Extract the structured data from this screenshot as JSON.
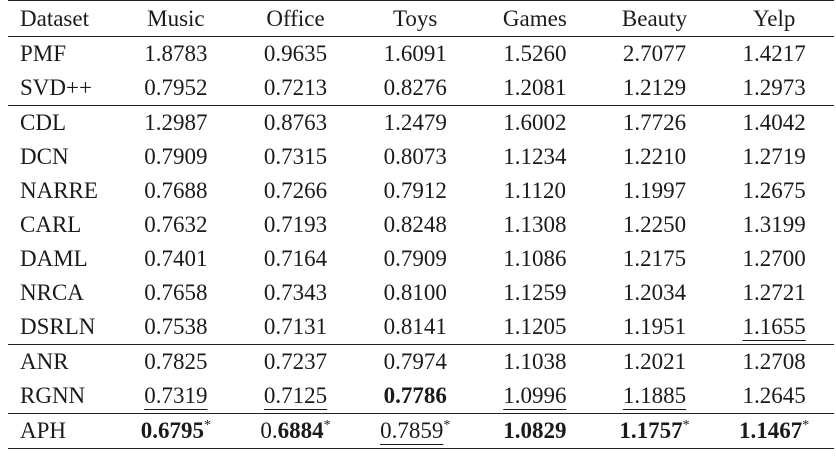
{
  "header": [
    "Dataset",
    "Music",
    "Office",
    "Toys",
    "Games",
    "Beauty",
    "Yelp"
  ],
  "rows": [
    {
      "name": "PMF",
      "cells": [
        {
          "v": "1.8783"
        },
        {
          "v": "0.9635"
        },
        {
          "v": "1.6091"
        },
        {
          "v": "1.5260"
        },
        {
          "v": "2.7077"
        },
        {
          "v": "1.4217"
        }
      ]
    },
    {
      "name": "SVD++",
      "cells": [
        {
          "v": "0.7952"
        },
        {
          "v": "0.7213"
        },
        {
          "v": "0.8276"
        },
        {
          "v": "1.2081"
        },
        {
          "v": "1.2129"
        },
        {
          "v": "1.2973"
        }
      ]
    },
    {
      "name": "CDL",
      "group_start": true,
      "cells": [
        {
          "v": "1.2987"
        },
        {
          "v": "0.8763"
        },
        {
          "v": "1.2479"
        },
        {
          "v": "1.6002"
        },
        {
          "v": "1.7726"
        },
        {
          "v": "1.4042"
        }
      ]
    },
    {
      "name": "DCN",
      "cells": [
        {
          "v": "0.7909"
        },
        {
          "v": "0.7315"
        },
        {
          "v": "0.8073"
        },
        {
          "v": "1.1234"
        },
        {
          "v": "1.2210"
        },
        {
          "v": "1.2719"
        }
      ]
    },
    {
      "name": "NARRE",
      "cells": [
        {
          "v": "0.7688"
        },
        {
          "v": "0.7266"
        },
        {
          "v": "0.7912"
        },
        {
          "v": "1.1120"
        },
        {
          "v": "1.1997"
        },
        {
          "v": "1.2675"
        }
      ]
    },
    {
      "name": "CARL",
      "cells": [
        {
          "v": "0.7632"
        },
        {
          "v": "0.7193"
        },
        {
          "v": "0.8248"
        },
        {
          "v": "1.1308"
        },
        {
          "v": "1.2250"
        },
        {
          "v": "1.3199"
        }
      ]
    },
    {
      "name": "DAML",
      "cells": [
        {
          "v": "0.7401"
        },
        {
          "v": "0.7164"
        },
        {
          "v": "0.7909"
        },
        {
          "v": "1.1086"
        },
        {
          "v": "1.2175"
        },
        {
          "v": "1.2700"
        }
      ]
    },
    {
      "name": "NRCA",
      "cells": [
        {
          "v": "0.7658"
        },
        {
          "v": "0.7343"
        },
        {
          "v": "0.8100"
        },
        {
          "v": "1.1259"
        },
        {
          "v": "1.2034"
        },
        {
          "v": "1.2721"
        }
      ]
    },
    {
      "name": "DSRLN",
      "cells": [
        {
          "v": "0.7538"
        },
        {
          "v": "0.7131"
        },
        {
          "v": "0.8141"
        },
        {
          "v": "1.1205"
        },
        {
          "v": "1.1951"
        },
        {
          "v": "1.1655",
          "underline": true
        }
      ]
    },
    {
      "name": "ANR",
      "group_start": true,
      "cells": [
        {
          "v": "0.7825"
        },
        {
          "v": "0.7237"
        },
        {
          "v": "0.7974"
        },
        {
          "v": "1.1038"
        },
        {
          "v": "1.2021"
        },
        {
          "v": "1.2708"
        }
      ]
    },
    {
      "name": "RGNN",
      "cells": [
        {
          "v": "0.7319",
          "underline": true
        },
        {
          "v": "0.7125",
          "underline": true
        },
        {
          "v": "0.7786",
          "bold": true
        },
        {
          "v": "1.0996",
          "underline": true
        },
        {
          "v": "1.1885",
          "underline": true
        },
        {
          "v": "1.2645"
        }
      ]
    },
    {
      "name": "APH",
      "group_start": true,
      "last": true,
      "cells": [
        {
          "v": "0.6795",
          "bold": true,
          "sup": "*"
        },
        {
          "pre": "0.",
          "v": "6884",
          "bold": true,
          "sup": "*"
        },
        {
          "v": "0.7859",
          "underline": true,
          "sup": "*"
        },
        {
          "v": "1.0829",
          "bold": true
        },
        {
          "v": "1.1757",
          "bold": true,
          "sup": "*"
        },
        {
          "v": "1.1467",
          "bold": true,
          "sup": "*"
        }
      ]
    }
  ]
}
